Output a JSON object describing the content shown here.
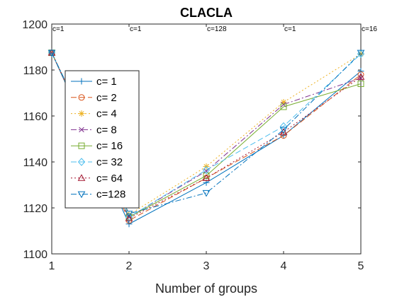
{
  "chart_data": {
    "type": "line",
    "title": "CLACLA",
    "xlabel": "Number of groups",
    "ylabel": "",
    "x": [
      1,
      2,
      3,
      4,
      5
    ],
    "xlim": [
      1,
      5
    ],
    "ylim": [
      1100,
      1200
    ],
    "xticks": [
      "1",
      "2",
      "3",
      "4",
      "5"
    ],
    "yticks": [
      "1100",
      "1120",
      "1140",
      "1160",
      "1180",
      "1200"
    ],
    "grid": false,
    "legend_position": "left",
    "annotations": [
      {
        "x": 1,
        "text": "c=1"
      },
      {
        "x": 2,
        "text": "c=1"
      },
      {
        "x": 3,
        "text": "c=128"
      },
      {
        "x": 4,
        "text": "c=1"
      },
      {
        "x": 5,
        "text": "c=16"
      }
    ],
    "series": [
      {
        "name": "c=  1",
        "color": "#0072BD",
        "dash": "",
        "marker": "plus",
        "values": [
          1187.5,
          1113.0,
          1131.0,
          1151.5,
          1179.5
        ]
      },
      {
        "name": "c=  2",
        "color": "#D95319",
        "dash": "8,4",
        "marker": "circle",
        "values": [
          1187.5,
          1114.5,
          1133.0,
          1151.5,
          1178.0
        ]
      },
      {
        "name": "c=  4",
        "color": "#EDB120",
        "dash": "2,3",
        "marker": "asterisk",
        "values": [
          1187.5,
          1117.0,
          1138.0,
          1166.0,
          1187.0
        ]
      },
      {
        "name": "c=  8",
        "color": "#7E2F8E",
        "dash": "8,3,2,3",
        "marker": "cross",
        "values": [
          1187.5,
          1116.0,
          1136.0,
          1165.0,
          1176.5
        ]
      },
      {
        "name": "c= 16",
        "color": "#77AC30",
        "dash": "",
        "marker": "square",
        "values": [
          1187.5,
          1116.0,
          1134.0,
          1164.0,
          1174.0
        ]
      },
      {
        "name": "c= 32",
        "color": "#4DBEEE",
        "dash": "8,4",
        "marker": "diamond",
        "values": [
          1187.5,
          1116.0,
          1136.5,
          1155.5,
          1187.0
        ]
      },
      {
        "name": "c= 64",
        "color": "#A2142F",
        "dash": "2,3",
        "marker": "triangle",
        "values": [
          1187.5,
          1115.5,
          1133.0,
          1153.0,
          1177.0
        ]
      },
      {
        "name": "c=128",
        "color": "#0072BD",
        "dash": "8,3,2,3",
        "marker": "tridown",
        "values": [
          1187.5,
          1117.5,
          1126.5,
          1154.0,
          1187.5
        ]
      }
    ]
  }
}
